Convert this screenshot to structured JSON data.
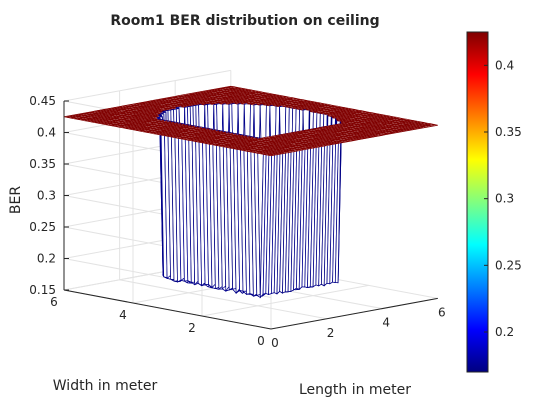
{
  "chart_data": {
    "type": "surface",
    "title": "Room1 BER distribution on ceiling",
    "xlabel": "Length in meter",
    "ylabel": "Width in meter",
    "zlabel": "BER",
    "xlim": [
      0,
      6
    ],
    "ylim": [
      0,
      6
    ],
    "zlim": [
      0.15,
      0.45
    ],
    "x_ticks": [
      "0",
      "2",
      "4",
      "6"
    ],
    "y_ticks": [
      "0",
      "2",
      "4",
      "6"
    ],
    "z_ticks": [
      "0.15",
      "0.2",
      "0.25",
      "0.3",
      "0.35",
      "0.4",
      "0.45"
    ],
    "colorbar": {
      "min": 0.17,
      "max": 0.425,
      "ticks": [
        "0.2",
        "0.25",
        "0.3",
        "0.35",
        "0.4"
      ],
      "colormap": "jet"
    },
    "surface": {
      "grid_spacing": 0.1,
      "low_value": 0.17,
      "high_value": 0.425,
      "high_regions": [
        {
          "shape": "rectangle",
          "x": [
            0,
            6
          ],
          "y": [
            0,
            1.5
          ]
        },
        {
          "shape": "rectangle",
          "x": [
            0,
            1.5
          ],
          "y": [
            0,
            6
          ]
        },
        {
          "shape": "rectangle",
          "x": [
            4.5,
            6
          ],
          "y": [
            4.5,
            6
          ]
        },
        {
          "shape": "circle",
          "center": [
            3,
            3
          ],
          "radius": 2.0,
          "region": "outside"
        }
      ]
    },
    "grid": true,
    "box": true
  }
}
